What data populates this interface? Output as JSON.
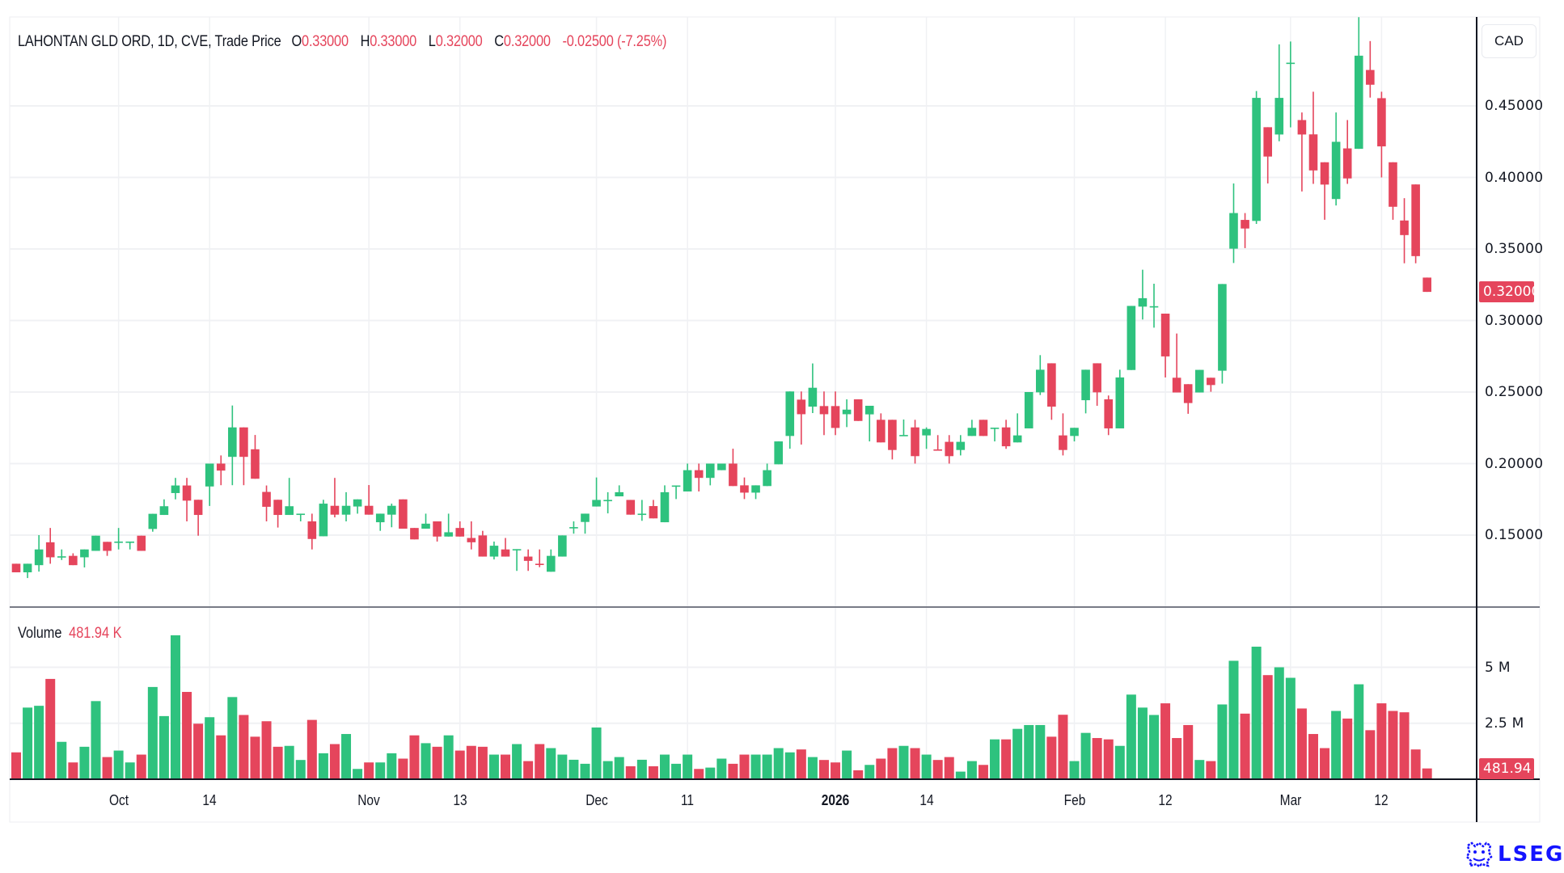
{
  "header": {
    "title": "LAHONTAN GLD ORD, 1D, CVE, Trade Price",
    "open_label": "O",
    "open": "0.33000",
    "high_label": "H",
    "high": "0.33000",
    "low_label": "L",
    "low": "0.32000",
    "close_label": "C",
    "close": "0.32000",
    "change": "-0.02500 (-7.25%)"
  },
  "currency": "CAD",
  "volume_pane": {
    "label": "Volume",
    "value": "481.94 K"
  },
  "last_price_badge": "0.32000",
  "last_volume_badge": "481.94 K",
  "logo_text": "LSEG",
  "colors": {
    "up": "#2ec27e",
    "down": "#e5455c",
    "grid": "#f0f1f4",
    "axis": "#131722"
  },
  "chart_data": {
    "type": "candlestick",
    "title": "LAHONTAN GLD ORD, 1D, CVE, Trade Price",
    "ylabel": "CAD",
    "ylim": [
      0.1068,
      0.5125
    ],
    "y_ticks": [
      {
        "value": 0.45,
        "label": "0.45000"
      },
      {
        "value": 0.4,
        "label": "0.40000"
      },
      {
        "value": 0.35,
        "label": "0.35000"
      },
      {
        "value": 0.3,
        "label": "0.30000"
      },
      {
        "value": 0.25,
        "label": "0.25000"
      },
      {
        "value": 0.2,
        "label": "0.20000"
      },
      {
        "value": 0.15,
        "label": "0.15000"
      }
    ],
    "volume_ticks": [
      {
        "value": 5,
        "label": "5 M"
      },
      {
        "value": 2.5,
        "label": "2.5 M"
      }
    ],
    "volume_unit": "M",
    "x_labels": [
      {
        "label": "Oct",
        "index": 9
      },
      {
        "label": "14",
        "index": 17
      },
      {
        "label": "Nov",
        "index": 31
      },
      {
        "label": "13",
        "index": 39
      },
      {
        "label": "Dec",
        "index": 51
      },
      {
        "label": "11",
        "index": 59
      },
      {
        "label": "2026",
        "index": 72,
        "bold": true
      },
      {
        "label": "14",
        "index": 80
      },
      {
        "label": "Feb",
        "index": 93
      },
      {
        "label": "12",
        "index": 101
      },
      {
        "label": "Mar",
        "index": 112
      },
      {
        "label": "12",
        "index": 120
      }
    ],
    "ohlc": [
      [
        0.13,
        0.13,
        0.124,
        0.124
      ],
      [
        0.124,
        0.13,
        0.12,
        0.13
      ],
      [
        0.129,
        0.15,
        0.1245,
        0.14
      ],
      [
        0.145,
        0.155,
        0.13,
        0.1345
      ],
      [
        0.135,
        0.14,
        0.1326,
        0.1352
      ],
      [
        0.1355,
        0.1373,
        0.129,
        0.129
      ],
      [
        0.1345,
        0.14,
        0.1274,
        0.14
      ],
      [
        0.139,
        0.1496,
        0.139,
        0.1496
      ],
      [
        0.1453,
        0.1453,
        0.1355,
        0.139
      ],
      [
        0.145,
        0.155,
        0.14,
        0.1455
      ],
      [
        0.145,
        0.1455,
        0.14,
        0.1455
      ],
      [
        0.1496,
        0.1496,
        0.139,
        0.139
      ],
      [
        0.1543,
        0.1649,
        0.1524,
        0.1649
      ],
      [
        0.1641,
        0.175,
        0.1641,
        0.1702
      ],
      [
        0.1794,
        0.19,
        0.175,
        0.1847
      ],
      [
        0.1847,
        0.19,
        0.1596,
        0.1741
      ],
      [
        0.1747,
        0.1747,
        0.1496,
        0.1641
      ],
      [
        0.184,
        0.2,
        0.1704,
        0.2
      ],
      [
        0.2,
        0.2057,
        0.1849,
        0.1951
      ],
      [
        0.2047,
        0.2406,
        0.1849,
        0.2253
      ],
      [
        0.2253,
        0.2253,
        0.1849,
        0.2047
      ],
      [
        0.21,
        0.22,
        0.1894,
        0.1894
      ],
      [
        0.1802,
        0.1847,
        0.1596,
        0.1698
      ],
      [
        0.1747,
        0.1747,
        0.1553,
        0.1641
      ],
      [
        0.1641,
        0.19,
        0.1641,
        0.1702
      ],
      [
        0.1648,
        0.165,
        0.1596,
        0.165
      ],
      [
        0.1596,
        0.165,
        0.14,
        0.1473
      ],
      [
        0.1492,
        0.1747,
        0.1492,
        0.172
      ],
      [
        0.1705,
        0.19,
        0.1624,
        0.1643
      ],
      [
        0.1643,
        0.18,
        0.1596,
        0.1705
      ],
      [
        0.17,
        0.175,
        0.165,
        0.175
      ],
      [
        0.1705,
        0.185,
        0.1643,
        0.1643
      ],
      [
        0.159,
        0.165,
        0.153,
        0.165
      ],
      [
        0.1643,
        0.172,
        0.1555,
        0.1705
      ],
      [
        0.175,
        0.175,
        0.1545,
        0.1545
      ],
      [
        0.155,
        0.155,
        0.147,
        0.147
      ],
      [
        0.1545,
        0.165,
        0.1545,
        0.158
      ],
      [
        0.1596,
        0.1596,
        0.1455,
        0.149
      ],
      [
        0.149,
        0.165,
        0.149,
        0.152
      ],
      [
        0.155,
        0.1596,
        0.149,
        0.149
      ],
      [
        0.148,
        0.1596,
        0.14,
        0.145
      ],
      [
        0.1498,
        0.153,
        0.135,
        0.135
      ],
      [
        0.135,
        0.1455,
        0.133,
        0.1426
      ],
      [
        0.14,
        0.148,
        0.135,
        0.135
      ],
      [
        0.14,
        0.1402,
        0.125,
        0.1402
      ],
      [
        0.135,
        0.14,
        0.125,
        0.132
      ],
      [
        0.13,
        0.14,
        0.1276,
        0.1295
      ],
      [
        0.1244,
        0.14,
        0.1244,
        0.1355
      ],
      [
        0.135,
        0.1498,
        0.135,
        0.1498
      ],
      [
        0.155,
        0.1596,
        0.151,
        0.1556
      ],
      [
        0.1592,
        0.165,
        0.151,
        0.165
      ],
      [
        0.17,
        0.1903,
        0.17,
        0.1746
      ],
      [
        0.1745,
        0.18,
        0.1652,
        0.1746
      ],
      [
        0.1771,
        0.1848,
        0.1771,
        0.18
      ],
      [
        0.1746,
        0.1746,
        0.1643,
        0.1643
      ],
      [
        0.1648,
        0.1746,
        0.16,
        0.165
      ],
      [
        0.1703,
        0.1746,
        0.1617,
        0.1617
      ],
      [
        0.159,
        0.1848,
        0.159,
        0.18
      ],
      [
        0.1846,
        0.1847,
        0.1752,
        0.1847
      ],
      [
        0.1805,
        0.2,
        0.1805,
        0.1954
      ],
      [
        0.1954,
        0.2,
        0.1805,
        0.19
      ],
      [
        0.19,
        0.2,
        0.1848,
        0.2
      ],
      [
        0.1954,
        0.2,
        0.1954,
        0.2
      ],
      [
        0.2,
        0.2104,
        0.1843,
        0.1843
      ],
      [
        0.1848,
        0.1903,
        0.1752,
        0.1797
      ],
      [
        0.1797,
        0.1848,
        0.1752,
        0.1848
      ],
      [
        0.1843,
        0.2,
        0.1843,
        0.1954
      ],
      [
        0.1995,
        0.2155,
        0.1995,
        0.2155
      ],
      [
        0.2193,
        0.2504,
        0.2104,
        0.2504
      ],
      [
        0.2447,
        0.2504,
        0.2133,
        0.2345
      ],
      [
        0.2398,
        0.27,
        0.2353,
        0.253
      ],
      [
        0.2402,
        0.2504,
        0.2199,
        0.2345
      ],
      [
        0.2402,
        0.2504,
        0.2199,
        0.2249
      ],
      [
        0.2345,
        0.2449,
        0.2255,
        0.2377
      ],
      [
        0.2449,
        0.2449,
        0.2298,
        0.2298
      ],
      [
        0.2344,
        0.2404,
        0.2155,
        0.2404
      ],
      [
        0.2306,
        0.2351,
        0.2148,
        0.2148
      ],
      [
        0.2306,
        0.2306,
        0.2029,
        0.2095
      ],
      [
        0.2197,
        0.2308,
        0.2197,
        0.22
      ],
      [
        0.2253,
        0.2306,
        0.2,
        0.2052
      ],
      [
        0.2197,
        0.2253,
        0.2103,
        0.2242
      ],
      [
        0.2099,
        0.2199,
        0.2097,
        0.2097
      ],
      [
        0.2152,
        0.2199,
        0.2,
        0.2052
      ],
      [
        0.2095,
        0.2199,
        0.2057,
        0.2152
      ],
      [
        0.2193,
        0.2306,
        0.2193,
        0.225
      ],
      [
        0.2306,
        0.2306,
        0.2193,
        0.2193
      ],
      [
        0.225,
        0.2251,
        0.2155,
        0.2251
      ],
      [
        0.2253,
        0.2306,
        0.2103,
        0.2121
      ],
      [
        0.2148,
        0.2351,
        0.2148,
        0.2197
      ],
      [
        0.2246,
        0.25,
        0.2246,
        0.25
      ],
      [
        0.2498,
        0.2758,
        0.2479,
        0.2656
      ],
      [
        0.2701,
        0.2701,
        0.2306,
        0.2398
      ],
      [
        0.2197,
        0.2351,
        0.2057,
        0.2095
      ],
      [
        0.2193,
        0.225,
        0.2155,
        0.225
      ],
      [
        0.2443,
        0.2656,
        0.2351,
        0.2656
      ],
      [
        0.2701,
        0.2701,
        0.2404,
        0.2498
      ],
      [
        0.2449,
        0.2476,
        0.2199,
        0.2246
      ],
      [
        0.2246,
        0.2656,
        0.2246,
        0.2602
      ],
      [
        0.2654,
        0.3102,
        0.2654,
        0.3102
      ],
      [
        0.3097,
        0.3355,
        0.3007,
        0.3156
      ],
      [
        0.3099,
        0.3257,
        0.295,
        0.31
      ],
      [
        0.3048,
        0.3048,
        0.2602,
        0.2749
      ],
      [
        0.26,
        0.2909,
        0.2497,
        0.2497
      ],
      [
        0.2555,
        0.2555,
        0.2348,
        0.2423
      ],
      [
        0.2497,
        0.2655,
        0.2497,
        0.2655
      ],
      [
        0.26,
        0.26,
        0.2502,
        0.2549
      ],
      [
        0.2649,
        0.3255,
        0.2559,
        0.3255
      ],
      [
        0.3502,
        0.3958,
        0.3402,
        0.3751
      ],
      [
        0.3703,
        0.3751,
        0.3506,
        0.3643
      ],
      [
        0.3696,
        0.4604,
        0.3675,
        0.4556
      ],
      [
        0.4351,
        0.4351,
        0.3958,
        0.4146
      ],
      [
        0.43,
        0.493,
        0.4253,
        0.4556
      ],
      [
        0.48,
        0.495,
        0.435,
        0.4802
      ],
      [
        0.4401,
        0.4454,
        0.3902,
        0.43
      ],
      [
        0.4301,
        0.4599,
        0.3955,
        0.4049
      ],
      [
        0.4106,
        0.4106,
        0.3704,
        0.395
      ],
      [
        0.3849,
        0.4454,
        0.3804,
        0.4249
      ],
      [
        0.4203,
        0.4401,
        0.3955,
        0.3993
      ],
      [
        0.42,
        0.512,
        0.42,
        0.4851
      ],
      [
        0.4751,
        0.4953,
        0.4558,
        0.4648
      ],
      [
        0.4554,
        0.4599,
        0.4,
        0.4217
      ],
      [
        0.4106,
        0.4106,
        0.3704,
        0.3795
      ],
      [
        0.3699,
        0.3855,
        0.34,
        0.3597
      ],
      [
        0.3951,
        0.3951,
        0.34,
        0.345
      ],
      [
        0.33,
        0.33,
        0.32,
        0.32
      ]
    ],
    "volume_millions": [
      1.2,
      3.2,
      3.28,
      4.48,
      1.67,
      0.75,
      1.45,
      3.49,
      0.99,
      1.28,
      0.75,
      1.1,
      4.12,
      2.82,
      6.43,
      3.9,
      2.48,
      2.77,
      1.96,
      3.67,
      2.87,
      1.9,
      2.59,
      1.45,
      1.49,
      0.86,
      2.65,
      1.16,
      1.57,
      2.02,
      0.46,
      0.75,
      0.75,
      1.16,
      0.92,
      1.96,
      1.61,
      1.45,
      1.96,
      1.28,
      1.49,
      1.45,
      1.1,
      1.1,
      1.57,
      0.81,
      1.57,
      1.39,
      1.1,
      0.87,
      0.69,
      2.31,
      0.81,
      0.99,
      0.58,
      0.87,
      0.58,
      1.1,
      0.69,
      1.1,
      0.46,
      0.52,
      0.92,
      0.69,
      1.1,
      1.1,
      1.1,
      1.39,
      1.2,
      1.33,
      0.99,
      0.86,
      0.75,
      1.28,
      0.4,
      0.64,
      0.92,
      1.39,
      1.49,
      1.39,
      1.1,
      0.86,
      0.99,
      0.34,
      0.81,
      0.64,
      1.78,
      1.78,
      2.25,
      2.42,
      2.42,
      1.9,
      2.88,
      0.81,
      2.07,
      1.84,
      1.78,
      1.49,
      3.78,
      3.2,
      2.87,
      3.39,
      1.84,
      2.42,
      0.86,
      0.81,
      3.34,
      5.29,
      2.93,
      5.92,
      4.65,
      5.0,
      4.53,
      3.16,
      2.02,
      1.39,
      3.05,
      2.71,
      4.24,
      2.19,
      3.39,
      3.05,
      2.99,
      1.33,
      0.482
    ]
  }
}
